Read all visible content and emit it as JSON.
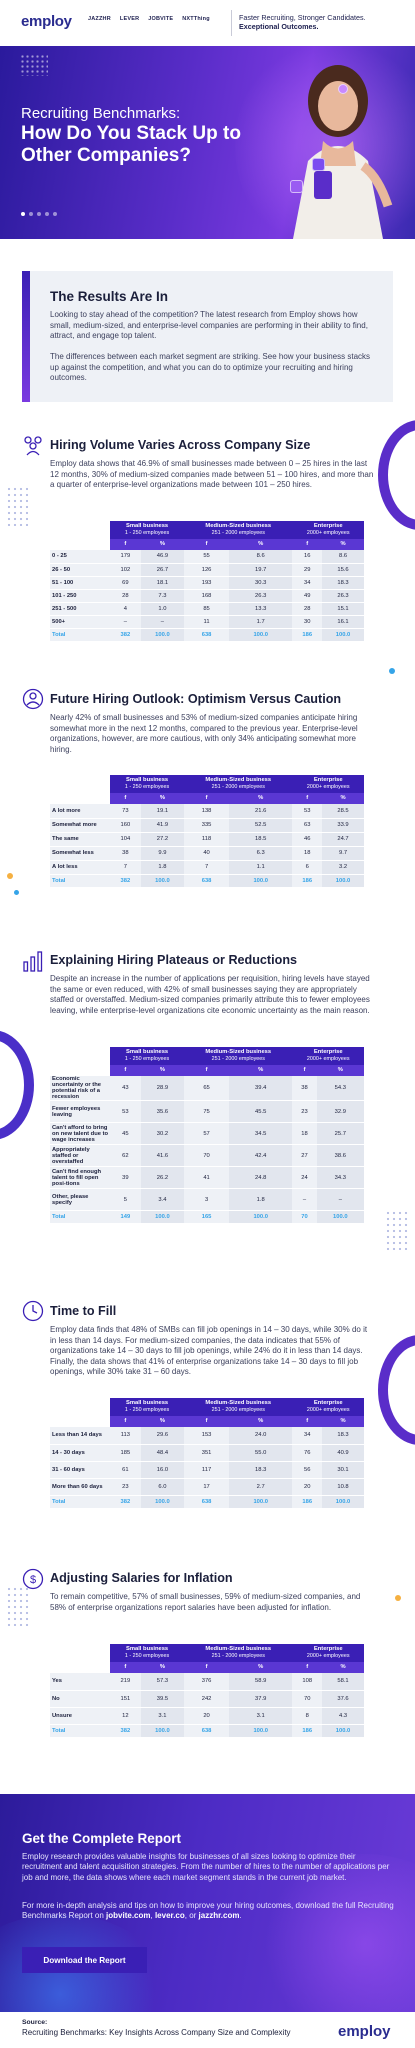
{
  "header": {
    "logo": "employ",
    "partners": [
      "JAZZHR",
      "LEVER",
      "JOBVITE",
      "NXTThing"
    ],
    "tagline_line1": "Faster Recruiting, Stronger Candidates.",
    "tagline_line2": "Exceptional Outcomes."
  },
  "hero": {
    "kicker": "Recruiting Benchmarks:",
    "title": "How Do You Stack Up to Other Companies?"
  },
  "intro": {
    "title": "The Results Are In",
    "p1": "Looking to stay ahead of the competition? The latest research from Employ shows how small, medium-sized, and enterprise-level companies are performing in their ability to find, attract, and engage top talent.",
    "p2": "The differences between each market segment are striking. See how your business stacks up against the competition, and what you can do to optimize your recruiting and hiring outcomes."
  },
  "table_header": {
    "small": "Small business",
    "small_sub": "1 - 250 employees",
    "medium": "Medium-Sized business",
    "medium_sub": "251 - 2000 employees",
    "enterprise": "Enterprise",
    "enterprise_sub": "2000+ employees",
    "f": "f",
    "pct": "%"
  },
  "sections": [
    {
      "title": "Hiring Volume Varies Across Company Size",
      "body": "Employ data shows that 46.9% of small businesses made between 0 – 25 hires in the last 12 months, 30% of medium-sized companies made between 51 – 100 hires, and more than a quarter of enterprise-level organizations made between 101 – 250 hires.",
      "rows": [
        [
          "0 - 25",
          "179",
          "46.9",
          "55",
          "8.6",
          "16",
          "8.6"
        ],
        [
          "26 - 50",
          "102",
          "26.7",
          "126",
          "19.7",
          "29",
          "15.6"
        ],
        [
          "51 - 100",
          "69",
          "18.1",
          "193",
          "30.3",
          "34",
          "18.3"
        ],
        [
          "101 - 250",
          "28",
          "7.3",
          "168",
          "26.3",
          "49",
          "26.3"
        ],
        [
          "251 - 500",
          "4",
          "1.0",
          "85",
          "13.3",
          "28",
          "15.1"
        ],
        [
          "500+",
          "–",
          "–",
          "11",
          "1.7",
          "30",
          "16.1"
        ]
      ],
      "total": [
        "Total",
        "382",
        "100.0",
        "638",
        "100.0",
        "186",
        "100.0"
      ]
    },
    {
      "title": "Future Hiring Outlook: Optimism Versus Caution",
      "body": "Nearly 42% of small businesses and 53% of medium-sized companies anticipate hiring somewhat more in the next 12 months, compared to the previous year. Enterprise-level organizations, however, are more cautious, with only 34% anticipating somewhat more hiring.",
      "rows": [
        [
          "A lot more",
          "73",
          "19.1",
          "138",
          "21.6",
          "53",
          "28.5"
        ],
        [
          "Somewhat more",
          "160",
          "41.9",
          "335",
          "52.5",
          "63",
          "33.9"
        ],
        [
          "The same",
          "104",
          "27.2",
          "118",
          "18.5",
          "46",
          "24.7"
        ],
        [
          "Somewhat less",
          "38",
          "9.9",
          "40",
          "6.3",
          "18",
          "9.7"
        ],
        [
          "A lot less",
          "7",
          "1.8",
          "7",
          "1.1",
          "6",
          "3.2"
        ]
      ],
      "total": [
        "Total",
        "382",
        "100.0",
        "638",
        "100.0",
        "186",
        "100.0"
      ]
    },
    {
      "title": "Explaining Hiring Plateaus or Reductions",
      "body": "Despite an increase in the number of applications per requisition, hiring levels have stayed the same or even reduced, with 42% of small businesses saying they are appropriately staffed or overstaffed. Medium-sized companies primarily attribute this to fewer employees leaving, while enterprise-level organizations cite economic uncertainty as the main reason.",
      "rows": [
        [
          "Economic uncertainty or the potential risk of a recession",
          "43",
          "28.9",
          "65",
          "39.4",
          "38",
          "54.3"
        ],
        [
          "Fewer employees leaving",
          "53",
          "35.6",
          "75",
          "45.5",
          "23",
          "32.9"
        ],
        [
          "Can't afford to bring on new talent due to wage increases",
          "45",
          "30.2",
          "57",
          "34.5",
          "18",
          "25.7"
        ],
        [
          "Appropriately staffed or overstaffed",
          "62",
          "41.6",
          "70",
          "42.4",
          "27",
          "38.6"
        ],
        [
          "Can't find enough talent to fill open posi-tions",
          "39",
          "26.2",
          "41",
          "24.8",
          "24",
          "34.3"
        ],
        [
          "Other, please specify",
          "5",
          "3.4",
          "3",
          "1.8",
          "–",
          "–"
        ]
      ],
      "total": [
        "Total",
        "149",
        "100.0",
        "165",
        "100.0",
        "70",
        "100.0"
      ]
    },
    {
      "title": "Time to Fill",
      "body": "Employ data finds that 48% of SMBs can fill job openings in 14 – 30 days, while 30% do it in less than 14 days. For medium-sized companies, the data indicates that 55% of organizations take 14 – 30 days to fill job openings, while 24% do it in less than 14 days. Finally, the data shows that 41% of enterprise organizations take 14 – 30 days to fill job openings, while 30% take 31 – 60 days.",
      "rows": [
        [
          "Less than 14 days",
          "113",
          "29.6",
          "153",
          "24.0",
          "34",
          "18.3"
        ],
        [
          "14 - 30 days",
          "185",
          "48.4",
          "351",
          "55.0",
          "76",
          "40.9"
        ],
        [
          "31 - 60 days",
          "61",
          "16.0",
          "117",
          "18.3",
          "56",
          "30.1"
        ],
        [
          "More than 60 days",
          "23",
          "6.0",
          "17",
          "2.7",
          "20",
          "10.8"
        ]
      ],
      "total": [
        "Total",
        "382",
        "100.0",
        "638",
        "100.0",
        "186",
        "100.0"
      ]
    },
    {
      "title": "Adjusting Salaries for Inflation",
      "body": "To remain competitive, 57% of small businesses, 59% of medium-sized companies, and 58% of enterprise organizations report salaries have been adjusted for inflation.",
      "rows": [
        [
          "Yes",
          "219",
          "57.3",
          "376",
          "58.9",
          "108",
          "58.1"
        ],
        [
          "No",
          "151",
          "39.5",
          "242",
          "37.9",
          "70",
          "37.6"
        ],
        [
          "Unsure",
          "12",
          "3.1",
          "20",
          "3.1",
          "8",
          "4.3"
        ]
      ],
      "total": [
        "Total",
        "382",
        "100.0",
        "638",
        "100.0",
        "186",
        "100.0"
      ]
    }
  ],
  "footer": {
    "title": "Get the Complete Report",
    "p1": "Employ research provides valuable insights for businesses of all sizes looking to optimize their recruitment and talent acquisition strategies. From the number of hires to the number of applications per job and more, the data shows where each market segment stands in the current job market.",
    "p2_pre": "For more in-depth analysis and tips on how to improve your hiring outcomes, download the full Recruiting Benchmarks Report on ",
    "link1": "jobvite.com",
    "link2": "lever.co",
    "link3": "jazzhr.com",
    "sep1": ", ",
    "sep2": ", or ",
    "end": ".",
    "button": "Download the Report",
    "source_label": "Source:",
    "source_text": "Recruiting Benchmarks: Key Insights Across Company Size and Complexity",
    "logo": "employ"
  },
  "colors": {
    "brand": "#3a1fb5",
    "accent_blue": "#35a4e8",
    "row_bg": "#eef1f6"
  }
}
